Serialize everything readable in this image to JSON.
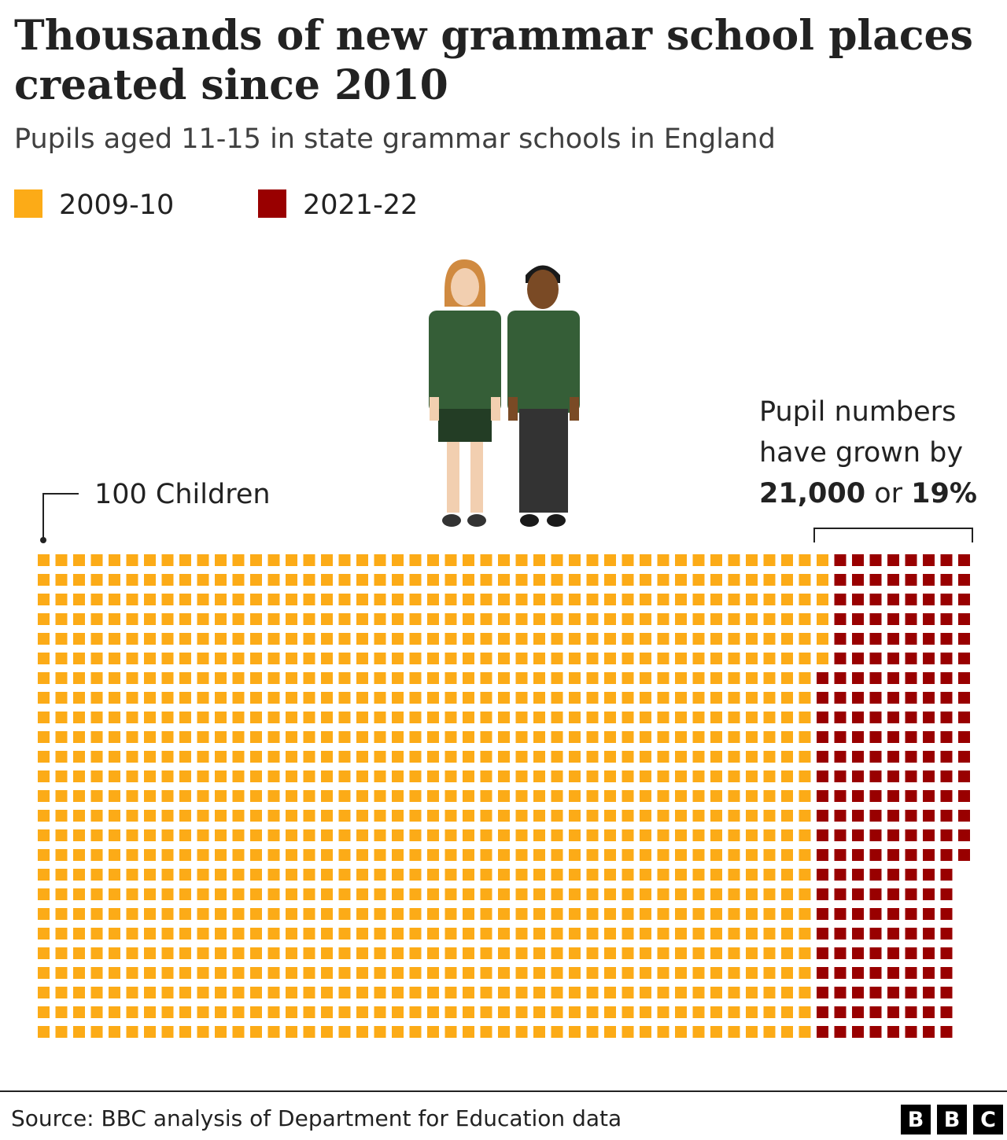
{
  "chart_data": {
    "type": "waffle",
    "title_lines": [
      "Thousands of new grammar school places",
      "created since 2010"
    ],
    "subtitle": "Pupils aged 11-15 in state grammar schools in England",
    "unit_label": "100 Children",
    "series": [
      {
        "name": "2009-10",
        "color": "#fcab17",
        "values": [
          1106
        ]
      },
      {
        "name": "2021-22",
        "color": "#990000",
        "values": [
          210
        ]
      }
    ],
    "annotation": {
      "lines": [
        [
          "Pupil numbers"
        ],
        [
          "have grown by"
        ],
        [
          "21,000",
          " or ",
          "19%"
        ]
      ],
      "bold": [
        [
          false
        ],
        [
          false
        ],
        [
          true,
          false,
          true
        ]
      ]
    },
    "source": "Source: BBC analysis of Department for Education data",
    "logo": [
      "B",
      "B",
      "C"
    ]
  }
}
